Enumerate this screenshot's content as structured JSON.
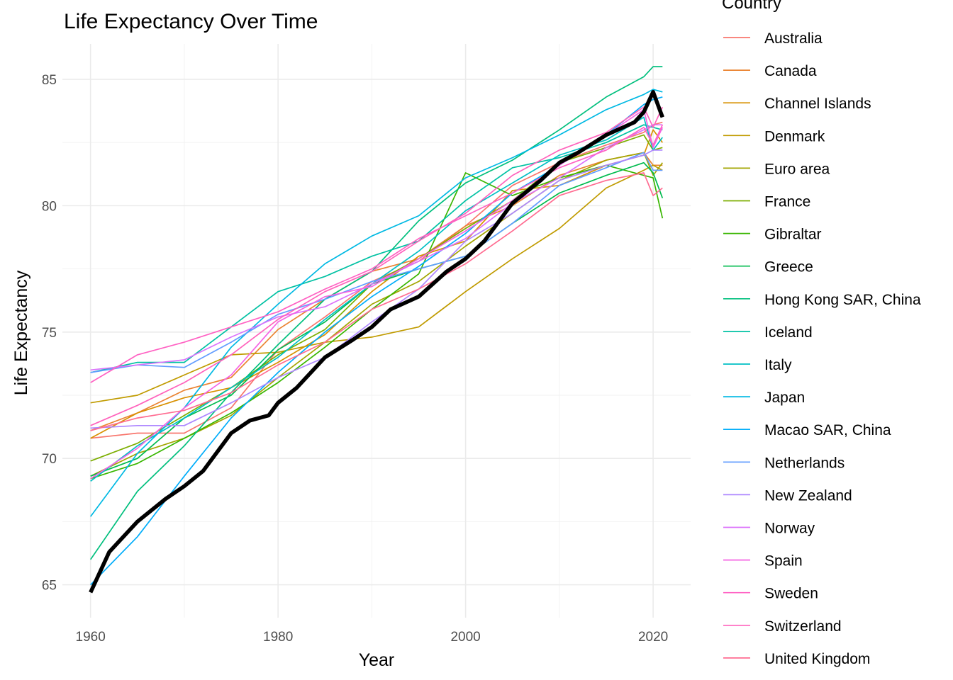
{
  "chart_data": {
    "type": "line",
    "title": "Life Expectancy Over Time",
    "xlabel": "Year",
    "ylabel": "Life Expectancy",
    "xlim": [
      1957,
      2024
    ],
    "ylim": [
      63.7,
      86.4
    ],
    "x_ticks": [
      1960,
      1980,
      2000,
      2020
    ],
    "y_ticks": [
      65,
      70,
      75,
      80,
      85
    ],
    "grid": true,
    "legend": {
      "title": "Country",
      "position": "right"
    },
    "highlight": {
      "color": "#000000",
      "x": [
        1960,
        1962,
        1965,
        1968,
        1970,
        1972,
        1975,
        1977,
        1979,
        1980,
        1982,
        1985,
        1988,
        1990,
        1992,
        1995,
        1998,
        2000,
        2002,
        2005,
        2008,
        2010,
        2012,
        2015,
        2018,
        2019,
        2020,
        2021
      ],
      "values": [
        64.7,
        66.3,
        67.5,
        68.4,
        68.9,
        69.5,
        71.0,
        71.5,
        71.7,
        72.2,
        72.8,
        74.0,
        74.7,
        75.2,
        75.9,
        76.4,
        77.4,
        77.9,
        78.6,
        80.1,
        81.0,
        81.7,
        82.1,
        82.8,
        83.3,
        83.7,
        84.5,
        83.5
      ]
    },
    "x": [
      1960,
      1965,
      1970,
      1975,
      1980,
      1985,
      1990,
      1995,
      2000,
      2005,
      2010,
      2015,
      2019,
      2020,
      2021
    ],
    "series": [
      {
        "name": "Australia",
        "color": "#F8766D",
        "values": [
          70.8,
          71.0,
          71.0,
          72.0,
          74.3,
          75.6,
          77.0,
          77.8,
          79.2,
          80.8,
          81.7,
          82.4,
          82.9,
          83.2,
          83.3
        ]
      },
      {
        "name": "Canada",
        "color": "#EA8331",
        "values": [
          71.1,
          71.8,
          72.7,
          73.2,
          75.1,
          76.3,
          77.4,
          77.9,
          79.2,
          80.0,
          81.2,
          81.8,
          82.1,
          81.6,
          81.6
        ]
      },
      {
        "name": "Channel Islands",
        "color": "#D89000",
        "values": [
          70.8,
          71.8,
          72.4,
          72.8,
          73.8,
          74.9,
          76.6,
          78.0,
          78.6,
          80.6,
          80.8,
          81.6,
          82.0,
          83.0,
          82.5
        ]
      },
      {
        "name": "Denmark",
        "color": "#C09B00",
        "values": [
          72.2,
          72.5,
          73.3,
          74.1,
          74.2,
          74.6,
          74.8,
          75.2,
          76.6,
          77.9,
          79.1,
          80.7,
          81.4,
          81.6,
          81.4
        ]
      },
      {
        "name": "Euro area",
        "color": "#A3A500",
        "values": [
          69.3,
          70.2,
          70.8,
          71.7,
          73.2,
          74.6,
          76.1,
          77.0,
          78.4,
          79.7,
          81.0,
          81.8,
          82.1,
          81.2,
          81.7
        ]
      },
      {
        "name": "France",
        "color": "#7CAE00",
        "values": [
          69.9,
          70.6,
          71.7,
          72.8,
          74.1,
          75.1,
          76.9,
          77.9,
          79.1,
          80.2,
          81.7,
          82.3,
          82.8,
          82.2,
          82.3
        ]
      },
      {
        "name": "Gibraltar",
        "color": "#39B600",
        "values": [
          69.2,
          69.8,
          70.8,
          71.8,
          73.0,
          74.4,
          75.9,
          77.3,
          81.3,
          80.4,
          81.1,
          81.6,
          81.2,
          81.1,
          79.5
        ]
      },
      {
        "name": "Greece",
        "color": "#00BB4E",
        "values": [
          69.3,
          70.0,
          71.6,
          72.5,
          74.3,
          75.4,
          76.9,
          77.5,
          78.0,
          79.3,
          80.5,
          81.2,
          81.7,
          81.3,
          80.3
        ]
      },
      {
        "name": "Hong Kong SAR, China",
        "color": "#00BF7D",
        "values": [
          66.0,
          68.7,
          70.5,
          72.6,
          74.5,
          76.3,
          77.4,
          79.4,
          80.9,
          81.8,
          83.0,
          84.3,
          85.1,
          85.5,
          85.5
        ]
      },
      {
        "name": "Iceland",
        "color": "#00C1A3",
        "values": [
          73.4,
          73.8,
          73.8,
          75.2,
          76.6,
          77.2,
          78.0,
          78.6,
          80.2,
          81.5,
          81.9,
          82.5,
          83.2,
          83.1,
          83.0
        ]
      },
      {
        "name": "Italy",
        "color": "#00BFC4",
        "values": [
          69.1,
          70.5,
          71.6,
          72.8,
          74.0,
          75.5,
          76.9,
          78.2,
          79.8,
          80.9,
          82.0,
          82.6,
          83.5,
          82.2,
          82.7
        ]
      },
      {
        "name": "Japan",
        "color": "#00B9E3",
        "values": [
          67.7,
          70.2,
          72.0,
          74.4,
          76.1,
          77.7,
          78.8,
          79.6,
          81.1,
          81.9,
          82.8,
          83.8,
          84.4,
          84.6,
          84.5
        ]
      },
      {
        "name": "Macao SAR, China",
        "color": "#00ADFA",
        "values": [
          65.0,
          66.9,
          69.3,
          71.6,
          73.4,
          75.0,
          76.4,
          77.6,
          78.9,
          80.5,
          81.6,
          82.8,
          84.0,
          84.2,
          84.3
        ]
      },
      {
        "name": "Netherlands",
        "color": "#619CFF",
        "values": [
          73.4,
          73.7,
          73.6,
          74.6,
          75.7,
          76.3,
          77.0,
          77.5,
          78.0,
          79.3,
          80.8,
          81.5,
          82.1,
          81.4,
          81.4
        ]
      },
      {
        "name": "New Zealand",
        "color": "#AE87FF",
        "values": [
          71.2,
          71.3,
          71.3,
          72.2,
          73.2,
          74.0,
          75.4,
          76.7,
          78.6,
          79.7,
          81.0,
          81.6,
          82.0,
          82.2,
          82.2
        ]
      },
      {
        "name": "Norway",
        "color": "#DB72FB",
        "values": [
          73.5,
          73.7,
          73.9,
          74.8,
          75.6,
          76.0,
          76.9,
          77.8,
          78.7,
          80.1,
          81.1,
          82.3,
          83.0,
          83.2,
          83.2
        ]
      },
      {
        "name": "Spain",
        "color": "#F564E3",
        "values": [
          69.2,
          70.4,
          72.0,
          73.3,
          75.4,
          76.4,
          76.8,
          77.9,
          79.0,
          80.2,
          81.6,
          82.8,
          83.8,
          82.3,
          83.1
        ]
      },
      {
        "name": "Sweden",
        "color": "#FF61C3",
        "values": [
          73.0,
          74.1,
          74.6,
          75.2,
          75.8,
          76.7,
          77.5,
          78.7,
          79.6,
          80.5,
          81.5,
          82.2,
          83.1,
          82.4,
          83.2
        ]
      },
      {
        "name": "Switzerland",
        "color": "#FF62BC",
        "values": [
          71.3,
          72.1,
          73.0,
          74.1,
          75.5,
          76.6,
          77.4,
          78.6,
          79.7,
          81.2,
          82.2,
          82.9,
          83.9,
          83.1,
          83.9
        ]
      },
      {
        "name": "United Kingdom",
        "color": "#FF6C91",
        "values": [
          71.1,
          71.6,
          71.9,
          72.6,
          73.7,
          74.6,
          75.9,
          76.7,
          77.7,
          79.0,
          80.4,
          81.0,
          81.3,
          80.4,
          80.7
        ]
      }
    ]
  }
}
